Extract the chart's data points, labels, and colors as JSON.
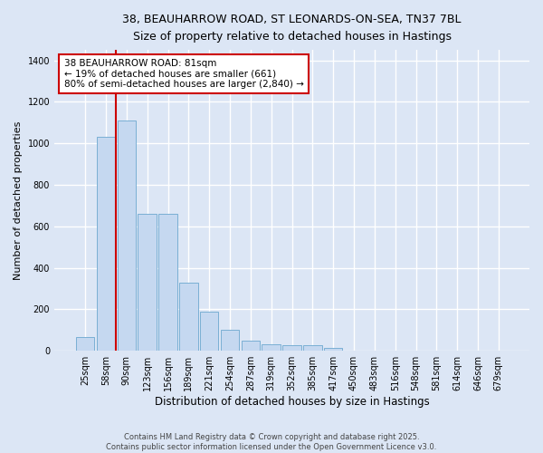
{
  "title_line1": "38, BEAUHARROW ROAD, ST LEONARDS-ON-SEA, TN37 7BL",
  "title_line2": "Size of property relative to detached houses in Hastings",
  "xlabel": "Distribution of detached houses by size in Hastings",
  "ylabel": "Number of detached properties",
  "categories": [
    "25sqm",
    "58sqm",
    "90sqm",
    "123sqm",
    "156sqm",
    "189sqm",
    "221sqm",
    "254sqm",
    "287sqm",
    "319sqm",
    "352sqm",
    "385sqm",
    "417sqm",
    "450sqm",
    "483sqm",
    "516sqm",
    "548sqm",
    "581sqm",
    "614sqm",
    "646sqm",
    "679sqm"
  ],
  "values": [
    68,
    1030,
    1110,
    660,
    660,
    330,
    190,
    100,
    50,
    32,
    25,
    25,
    12,
    0,
    0,
    0,
    0,
    0,
    0,
    0,
    0
  ],
  "bar_color": "#c5d8f0",
  "bar_edge_color": "#7aafd4",
  "red_line_color": "#cc0000",
  "annotation_text": "38 BEAUHARROW ROAD: 81sqm\n← 19% of detached houses are smaller (661)\n80% of semi-detached houses are larger (2,840) →",
  "annotation_box_color": "#ffffff",
  "annotation_box_edge": "#cc0000",
  "background_color": "#dce6f5",
  "grid_color": "#ffffff",
  "ylim": [
    0,
    1450
  ],
  "yticks": [
    0,
    200,
    400,
    600,
    800,
    1000,
    1200,
    1400
  ],
  "footer_line1": "Contains HM Land Registry data © Crown copyright and database right 2025.",
  "footer_line2": "Contains public sector information licensed under the Open Government Licence v3.0."
}
